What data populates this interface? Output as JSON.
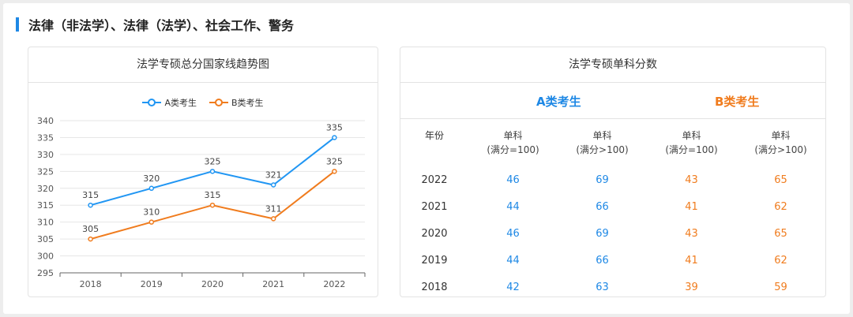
{
  "heading": "法律（非法学）、法律（法学）、社会工作、警务",
  "left_card": {
    "title": "法学专硕总分国家线趋势图"
  },
  "chart_data": {
    "type": "line",
    "title": "法学专硕总分国家线趋势图",
    "categories": [
      "2018",
      "2019",
      "2020",
      "2021",
      "2022"
    ],
    "series": [
      {
        "name": "A类考生",
        "values": [
          315,
          320,
          325,
          321,
          335
        ],
        "color": "#2196f3"
      },
      {
        "name": "B类考生",
        "values": [
          305,
          310,
          315,
          311,
          325
        ],
        "color": "#f07c1e"
      }
    ],
    "ylim": [
      295,
      340
    ],
    "yticks": [
      295,
      300,
      305,
      310,
      315,
      320,
      325,
      330,
      335,
      340
    ],
    "grid": true,
    "legend_position": "top-center"
  },
  "right_card": {
    "title": "法学专硕单科分数",
    "group_a": "A类考生",
    "group_b": "B类考生",
    "headers": [
      {
        "line1": "年份",
        "line2": ""
      },
      {
        "line1": "单科",
        "line2": "(满分=100)"
      },
      {
        "line1": "单科",
        "line2": "(满分>100)"
      },
      {
        "line1": "单科",
        "line2": "(满分=100)"
      },
      {
        "line1": "单科",
        "line2": "(满分>100)"
      }
    ],
    "rows": [
      {
        "year": "2022",
        "a1": "46",
        "a2": "69",
        "b1": "43",
        "b2": "65"
      },
      {
        "year": "2021",
        "a1": "44",
        "a2": "66",
        "b1": "41",
        "b2": "62"
      },
      {
        "year": "2020",
        "a1": "46",
        "a2": "69",
        "b1": "43",
        "b2": "65"
      },
      {
        "year": "2019",
        "a1": "44",
        "a2": "66",
        "b1": "41",
        "b2": "62"
      },
      {
        "year": "2018",
        "a1": "42",
        "a2": "63",
        "b1": "39",
        "b2": "59"
      }
    ]
  }
}
